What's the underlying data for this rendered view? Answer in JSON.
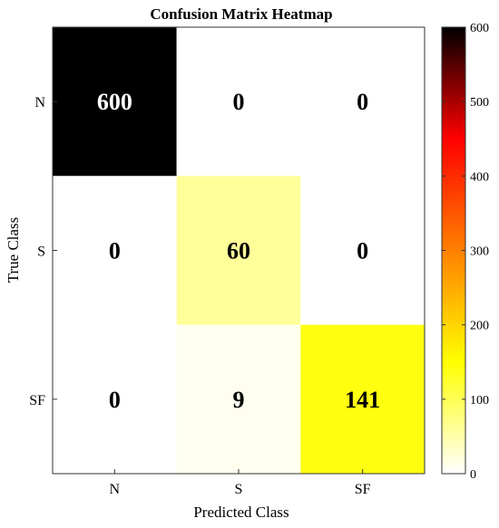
{
  "chart_data": {
    "type": "heatmap",
    "title": "Confusion Matrix Heatmap",
    "xlabel": "Predicted Class",
    "ylabel": "True Class",
    "x_categories": [
      "N",
      "S",
      "SF"
    ],
    "y_categories": [
      "N",
      "S",
      "SF"
    ],
    "values": [
      [
        600,
        0,
        0
      ],
      [
        0,
        60,
        0
      ],
      [
        0,
        9,
        141
      ]
    ],
    "value_labels": [
      [
        "600",
        "0",
        "0"
      ],
      [
        "0",
        "60",
        "0"
      ],
      [
        "0",
        "9",
        "141"
      ]
    ],
    "colorbar": {
      "range": [
        0,
        600
      ],
      "colormap": "hot (reversed)",
      "ticks": [
        0,
        100,
        200,
        300,
        400,
        500,
        600
      ],
      "tick_labels": [
        "0",
        "100",
        "200",
        "300",
        "400",
        "500",
        "600"
      ],
      "placement": "right"
    },
    "grid": false
  }
}
